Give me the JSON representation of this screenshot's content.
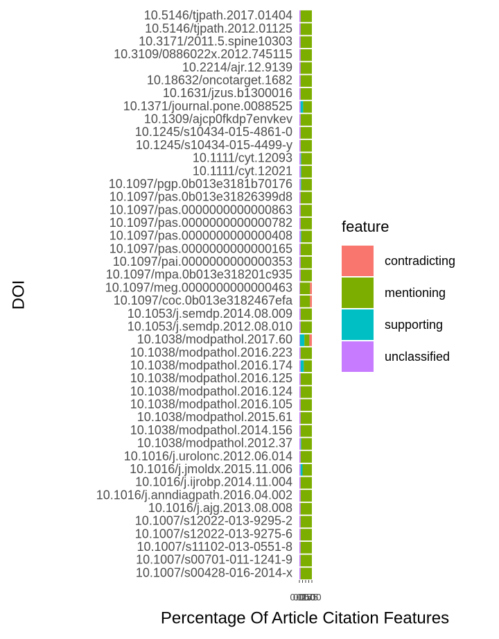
{
  "chart_data": {
    "type": "stacked-bar-horizontal",
    "x_label": "Percentage Of Article Citation Features",
    "y_label": "DOI",
    "legend_title": "feature",
    "categories": [
      "10.5146/tjpath.2017.01404",
      "10.5146/tjpath.2012.01125",
      "10.3171/2011.5.spine10303",
      "10.3109/0886022x.2012.745115",
      "10.2214/ajr.12.9139",
      "10.18632/oncotarget.1682",
      "10.1631/jzus.b1300016",
      "10.1371/journal.pone.0088525",
      "10.1309/ajcp0fkdp7envkev",
      "10.1245/s10434-015-4861-0",
      "10.1245/s10434-015-4499-y",
      "10.1111/cyt.12093",
      "10.1111/cyt.12021",
      "10.1097/pgp.0b013e3181b70176",
      "10.1097/pas.0b013e31826399d8",
      "10.1097/pas.0000000000000863",
      "10.1097/pas.0000000000000782",
      "10.1097/pas.0000000000000408",
      "10.1097/pas.0000000000000165",
      "10.1097/pai.0000000000000353",
      "10.1097/mpa.0b013e318201c935",
      "10.1097/meg.0000000000000463",
      "10.1097/coc.0b013e3182467efa",
      "10.1053/j.semdp.2014.08.009",
      "10.1053/j.semdp.2012.08.010",
      "10.1038/modpathol.2017.60",
      "10.1038/modpathol.2016.223",
      "10.1038/modpathol.2016.174",
      "10.1038/modpathol.2016.125",
      "10.1038/modpathol.2016.124",
      "10.1038/modpathol.2016.105",
      "10.1038/modpathol.2015.61",
      "10.1038/modpathol.2014.156",
      "10.1038/modpathol.2012.37",
      "10.1016/j.urolonc.2012.06.014",
      "10.1016/j.jmoldx.2015.11.006",
      "10.1016/j.ijrobp.2014.11.004",
      "10.1016/j.anndiagpath.2016.04.002",
      "10.1016/j.ajg.2013.08.008",
      "10.1007/s12022-013-9295-2",
      "10.1007/s12022-013-9275-6",
      "10.1007/s11102-013-0551-8",
      "10.1007/s00701-011-1241-9",
      "10.1007/s00428-016-2014-x"
    ],
    "series": [
      {
        "name": "contradicting",
        "color": "#F8766D",
        "values": [
          0,
          0,
          0,
          0,
          0,
          0,
          0,
          0,
          0,
          0,
          0,
          0,
          0,
          0,
          0,
          0,
          0,
          0,
          0,
          0,
          0,
          0.15,
          0.15,
          0,
          0,
          0.2,
          0,
          0,
          0,
          0,
          0,
          0,
          0,
          0,
          0,
          0,
          0,
          0,
          0,
          0,
          0,
          0,
          0,
          0
        ]
      },
      {
        "name": "mentioning",
        "color": "#7CAE00",
        "values": [
          0.9,
          0.9,
          0.9,
          0.9,
          0.9,
          0.9,
          0.9,
          0.7,
          0.9,
          0.9,
          0.9,
          0.85,
          0.85,
          0.85,
          0.9,
          0.9,
          0.9,
          0.85,
          0.9,
          0.9,
          0.9,
          0.8,
          0.8,
          0.9,
          0.9,
          0.4,
          0.9,
          0.65,
          0.9,
          0.9,
          0.9,
          0.9,
          0.9,
          0.85,
          0.9,
          0.75,
          0.9,
          0.9,
          0.9,
          0.9,
          0.9,
          0.9,
          0.9,
          0.9
        ]
      },
      {
        "name": "supporting",
        "color": "#00BFC4",
        "values": [
          0,
          0,
          0,
          0,
          0,
          0,
          0,
          0.2,
          0,
          0,
          0,
          0.05,
          0.05,
          0.05,
          0,
          0,
          0,
          0.05,
          0,
          0,
          0,
          0,
          0,
          0,
          0,
          0.35,
          0,
          0.25,
          0,
          0,
          0,
          0,
          0,
          0.05,
          0,
          0.15,
          0,
          0,
          0,
          0,
          0,
          0,
          0,
          0
        ]
      },
      {
        "name": "unclassified",
        "color": "#C77CFF",
        "values": [
          0.1,
          0.1,
          0.1,
          0.1,
          0.1,
          0.1,
          0.1,
          0.1,
          0.1,
          0.1,
          0.1,
          0.1,
          0.1,
          0.1,
          0.1,
          0.1,
          0.1,
          0.1,
          0.1,
          0.1,
          0.1,
          0.05,
          0.05,
          0.1,
          0.1,
          0.05,
          0.1,
          0.1,
          0.1,
          0.1,
          0.1,
          0.1,
          0.1,
          0.1,
          0.1,
          0.1,
          0.1,
          0.1,
          0.1,
          0.1,
          0.1,
          0.1,
          0.1,
          0.1
        ]
      }
    ],
    "xlim": [
      0,
      1
    ],
    "xticks": [
      {
        "value": 0,
        "label": "0.00"
      },
      {
        "value": 0.25,
        "label": "0.25"
      },
      {
        "value": 0.5,
        "label": "0.50"
      },
      {
        "value": 0.75,
        "label": "0.75"
      },
      {
        "value": 1,
        "label": "1.00"
      }
    ],
    "legend_position": "right"
  }
}
